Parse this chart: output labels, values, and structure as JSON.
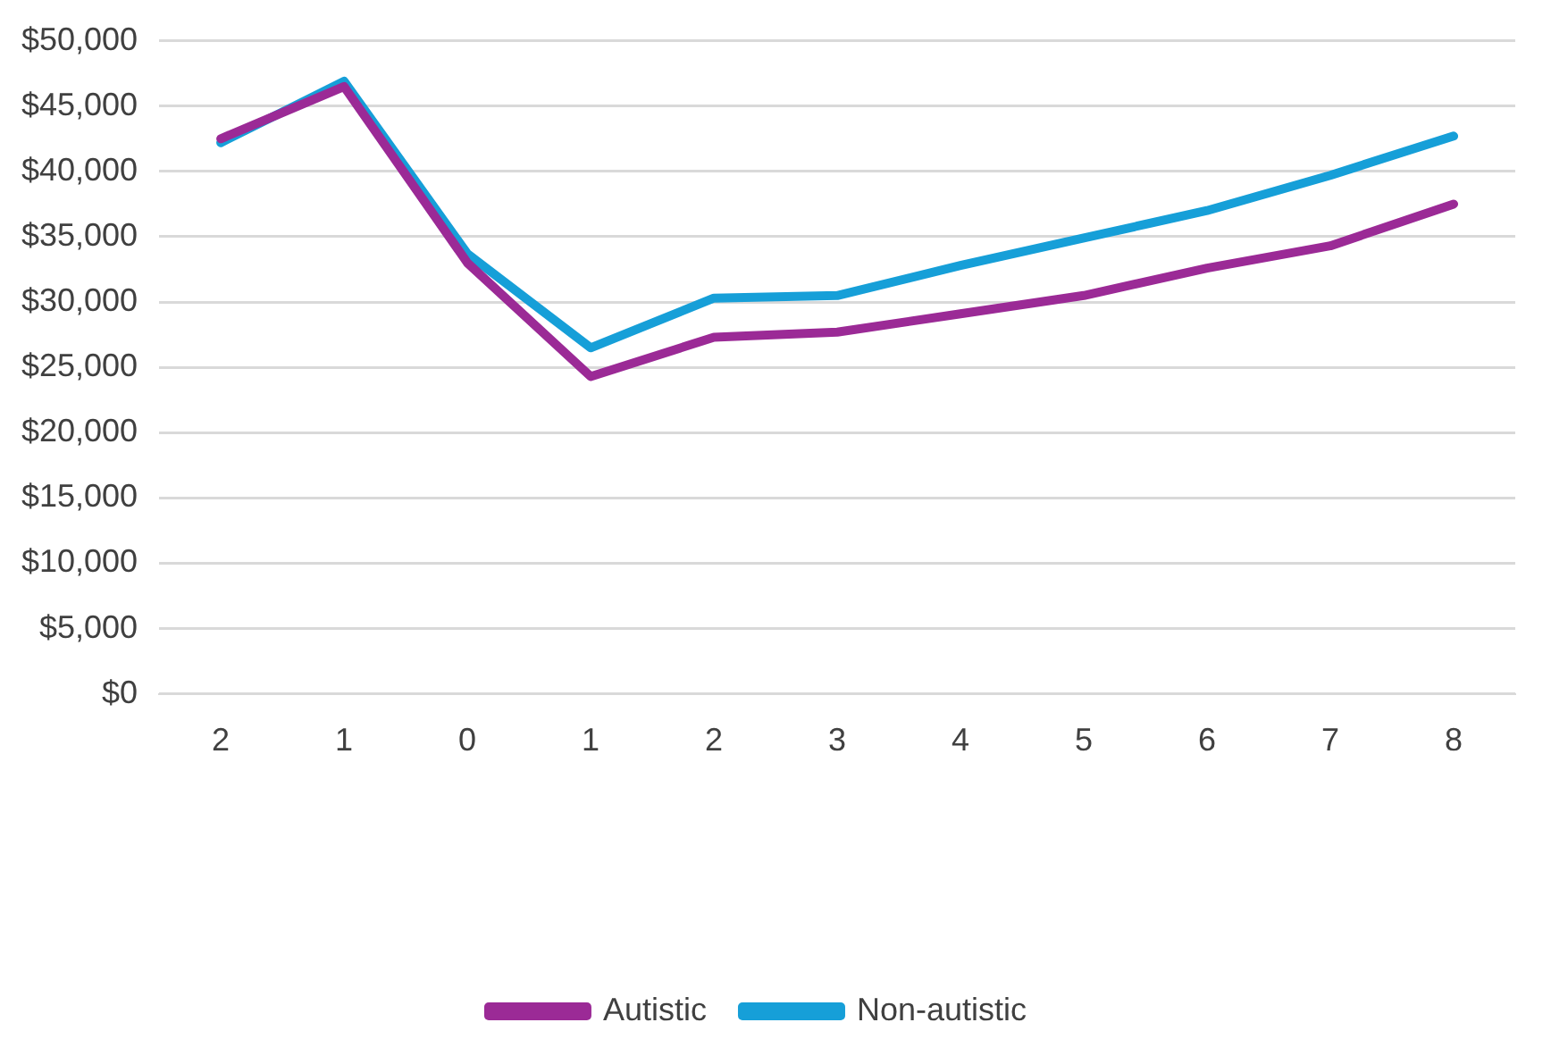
{
  "chart_data": {
    "type": "line",
    "categories": [
      "2",
      "1",
      "0",
      "1",
      "2",
      "3",
      "4",
      "5",
      "6",
      "7",
      "8"
    ],
    "series": [
      {
        "name": "Autistic",
        "color": "#9b2a96",
        "values": [
          42500,
          46500,
          33000,
          24300,
          27300,
          27700,
          29100,
          30500,
          32600,
          34300,
          37500
        ]
      },
      {
        "name": "Non-autistic",
        "color": "#169fd8",
        "values": [
          42200,
          46900,
          33700,
          26500,
          30300,
          30500,
          32800,
          34900,
          37000,
          39700,
          42700
        ]
      }
    ],
    "ylim": [
      0,
      50000
    ],
    "yticks": [
      {
        "value": 0,
        "label": "$0"
      },
      {
        "value": 5000,
        "label": "$5,000"
      },
      {
        "value": 10000,
        "label": "$10,000"
      },
      {
        "value": 15000,
        "label": "$15,000"
      },
      {
        "value": 20000,
        "label": "$20,000"
      },
      {
        "value": 25000,
        "label": "$25,000"
      },
      {
        "value": 30000,
        "label": "$30,000"
      },
      {
        "value": 35000,
        "label": "$35,000"
      },
      {
        "value": 40000,
        "label": "$40,000"
      },
      {
        "value": 45000,
        "label": "$45,000"
      },
      {
        "value": 50000,
        "label": "$50,000"
      }
    ],
    "grid": "y",
    "legend": "bottom",
    "marker": "none",
    "line_style": "solid"
  }
}
